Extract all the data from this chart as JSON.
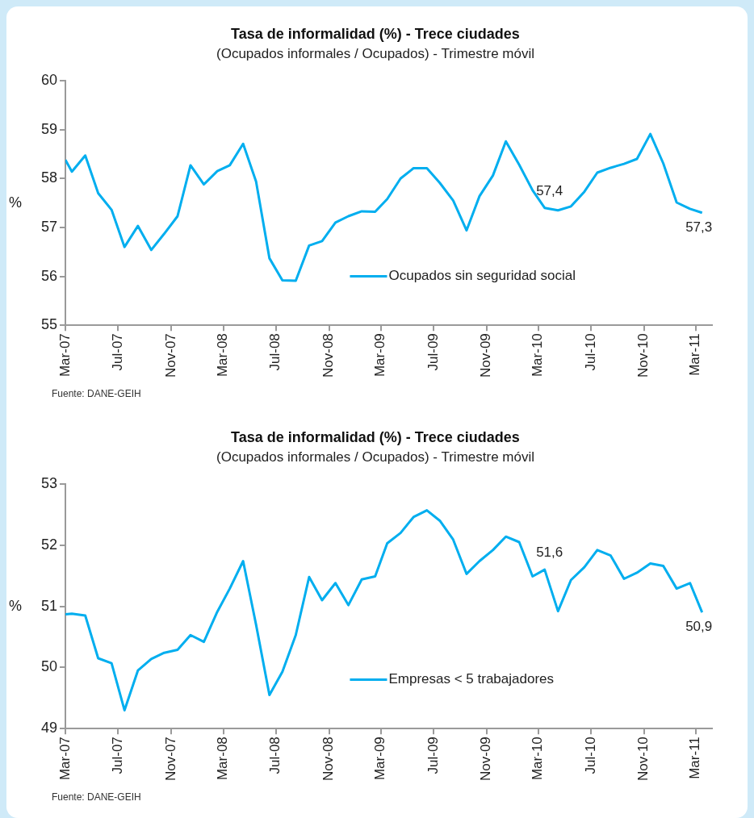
{
  "chart_data": [
    {
      "type": "line",
      "title": "Tasa de informalidad (%) - Trece ciudades",
      "subtitle": "(Ocupados informales / Ocupados) - Trimestre móvil",
      "ylabel": "%",
      "x": [
        "2007-03-01",
        "2007-03-16",
        "2007-04-16",
        "2007-05-16",
        "2007-06-16",
        "2007-07-16",
        "2007-08-16",
        "2007-09-16",
        "2007-10-16",
        "2007-11-16",
        "2007-12-16",
        "2008-01-16",
        "2008-02-16",
        "2008-03-16",
        "2008-04-16",
        "2008-05-16",
        "2008-06-16",
        "2008-07-16",
        "2008-08-16",
        "2008-09-16",
        "2008-10-16",
        "2008-11-16",
        "2008-12-16",
        "2009-01-16",
        "2009-02-16",
        "2009-03-16",
        "2009-04-16",
        "2009-05-16",
        "2009-06-16",
        "2009-07-16",
        "2009-08-16",
        "2009-09-16",
        "2009-10-16",
        "2009-11-16",
        "2009-12-16",
        "2010-01-16",
        "2010-02-16",
        "2010-03-16",
        "2010-04-16",
        "2010-05-16",
        "2010-06-16",
        "2010-07-16",
        "2010-08-16",
        "2010-09-16",
        "2010-10-16",
        "2010-11-16",
        "2010-12-16",
        "2011-01-16",
        "2011-02-16",
        "2011-03-16"
      ],
      "series": [
        {
          "name": "Ocupados sin seguridad social",
          "color": "#00aeef",
          "values": [
            58.38,
            58.14,
            58.47,
            57.7,
            57.36,
            56.6,
            57.03,
            56.54,
            56.87,
            57.23,
            58.27,
            57.88,
            58.15,
            58.27,
            58.71,
            57.94,
            56.37,
            55.92,
            55.91,
            56.63,
            56.72,
            57.1,
            57.23,
            57.33,
            57.32,
            57.58,
            58.0,
            58.21,
            58.21,
            57.91,
            57.55,
            56.94,
            57.64,
            58.06,
            58.76,
            58.28,
            57.76,
            57.4,
            57.35,
            57.43,
            57.73,
            58.12,
            58.22,
            58.3,
            58.4,
            58.91,
            58.31,
            57.51,
            57.38,
            57.3
          ]
        }
      ],
      "xlim": [
        "2007-03-01",
        "2011-04-08"
      ],
      "xticks": [
        {
          "value": "2007-03",
          "label": "Mar-07"
        },
        {
          "value": "2007-07",
          "label": "Jul-07"
        },
        {
          "value": "2007-11",
          "label": "Nov-07"
        },
        {
          "value": "2008-03",
          "label": "Mar-08"
        },
        {
          "value": "2008-07",
          "label": "Jul-08"
        },
        {
          "value": "2008-11",
          "label": "Nov-08"
        },
        {
          "value": "2009-03",
          "label": "Mar-09"
        },
        {
          "value": "2009-07",
          "label": "Jul-09"
        },
        {
          "value": "2009-11",
          "label": "Nov-09"
        },
        {
          "value": "2010-03",
          "label": "Mar-10"
        },
        {
          "value": "2010-07",
          "label": "Jul-10"
        },
        {
          "value": "2010-11",
          "label": "Nov-10"
        },
        {
          "value": "2011-03",
          "label": "Mar-11"
        }
      ],
      "ylim": [
        55,
        60
      ],
      "yticks": [
        55,
        56,
        57,
        58,
        59,
        60
      ],
      "legend": "bottom",
      "marker": "none",
      "grid": false,
      "annotations": [
        {
          "text": "57,4",
          "x": "2010-03-16",
          "y": 57.4
        },
        {
          "text": "57,3",
          "x": "2011-03-16",
          "y": 57.3
        },
        "Fuente: DANE-GEIH"
      ]
    },
    {
      "type": "line",
      "title": "Tasa de informalidad (%) - Trece ciudades",
      "subtitle": "(Ocupados informales / Ocupados) - Trimestre móvil",
      "ylabel": "%",
      "x": [
        "2007-03-01",
        "2007-03-16",
        "2007-04-16",
        "2007-05-16",
        "2007-06-16",
        "2007-07-16",
        "2007-08-16",
        "2007-09-16",
        "2007-10-16",
        "2007-11-16",
        "2007-12-16",
        "2008-01-16",
        "2008-02-16",
        "2008-03-16",
        "2008-04-16",
        "2008-05-16",
        "2008-06-16",
        "2008-07-16",
        "2008-08-16",
        "2008-09-16",
        "2008-10-16",
        "2008-11-16",
        "2008-12-16",
        "2009-01-16",
        "2009-02-16",
        "2009-03-16",
        "2009-04-16",
        "2009-05-16",
        "2009-06-16",
        "2009-07-16",
        "2009-08-16",
        "2009-09-16",
        "2009-10-16",
        "2009-11-16",
        "2009-12-16",
        "2010-01-16",
        "2010-02-16",
        "2010-03-16",
        "2010-04-16",
        "2010-05-16",
        "2010-06-16",
        "2010-07-16",
        "2010-08-16",
        "2010-09-16",
        "2010-10-16",
        "2010-11-16",
        "2010-12-16",
        "2011-01-16",
        "2011-02-16",
        "2011-03-16"
      ],
      "series": [
        {
          "name": "Empresas < 5 trabajadores",
          "color": "#00aeef",
          "values": [
            50.87,
            50.88,
            50.85,
            50.15,
            50.07,
            49.3,
            49.95,
            50.14,
            50.24,
            50.29,
            50.53,
            50.42,
            50.91,
            51.29,
            51.74,
            50.7,
            49.55,
            49.93,
            50.53,
            51.48,
            51.1,
            51.38,
            51.02,
            51.44,
            51.49,
            52.03,
            52.2,
            52.46,
            52.57,
            52.4,
            52.09,
            51.53,
            51.74,
            51.92,
            52.14,
            52.05,
            51.49,
            51.6,
            50.92,
            51.43,
            51.64,
            51.92,
            51.83,
            51.45,
            51.55,
            51.7,
            51.66,
            51.29,
            51.38,
            50.9
          ]
        }
      ],
      "xlim": [
        "2007-03-01",
        "2011-04-08"
      ],
      "xticks": [
        {
          "value": "2007-03",
          "label": "Mar-07"
        },
        {
          "value": "2007-07",
          "label": "Jul-07"
        },
        {
          "value": "2007-11",
          "label": "Nov-07"
        },
        {
          "value": "2008-03",
          "label": "Mar-08"
        },
        {
          "value": "2008-07",
          "label": "Jul-08"
        },
        {
          "value": "2008-11",
          "label": "Nov-08"
        },
        {
          "value": "2009-03",
          "label": "Mar-09"
        },
        {
          "value": "2009-07",
          "label": "Jul-09"
        },
        {
          "value": "2009-11",
          "label": "Nov-09"
        },
        {
          "value": "2010-03",
          "label": "Mar-10"
        },
        {
          "value": "2010-07",
          "label": "Jul-10"
        },
        {
          "value": "2010-11",
          "label": "Nov-10"
        },
        {
          "value": "2011-03",
          "label": "Mar-11"
        }
      ],
      "ylim": [
        49,
        53
      ],
      "yticks": [
        49,
        50,
        51,
        52,
        53
      ],
      "legend": "bottom",
      "marker": "none",
      "grid": false,
      "annotations": [
        {
          "text": "51,6",
          "x": "2010-03-16",
          "y": 51.6
        },
        {
          "text": "50,9",
          "x": "2011-03-16",
          "y": 50.9
        },
        "Fuente: DANE-GEIH"
      ]
    }
  ]
}
